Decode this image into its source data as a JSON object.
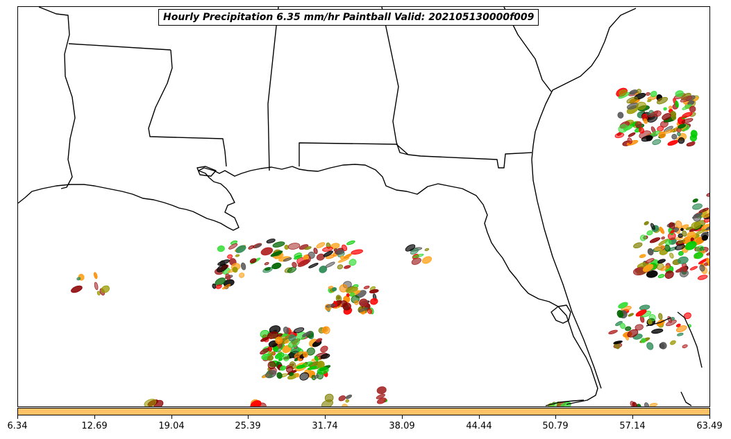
{
  "title": "Hourly Precipitation 6.35 mm/hr Paintball Valid: 202105130000f009",
  "colors": {
    "colorbar": "#ffc266",
    "coast": "#000000",
    "member_palette": [
      "#ff0000",
      "#ff8c00",
      "#ffa31a",
      "#00cc00",
      "#33dd33",
      "#006600",
      "#8b0000",
      "#a52a2a",
      "#808000",
      "#999900",
      "#000000",
      "#555555",
      "#b22222",
      "#2e8b57"
    ]
  },
  "colorbar": {
    "ticks": [
      "6.34",
      "12.69",
      "19.04",
      "25.39",
      "31.74",
      "38.09",
      "44.44",
      "50.79",
      "57.14",
      "63.49"
    ]
  },
  "icons": {
    "map": "gulf-coast-map"
  }
}
